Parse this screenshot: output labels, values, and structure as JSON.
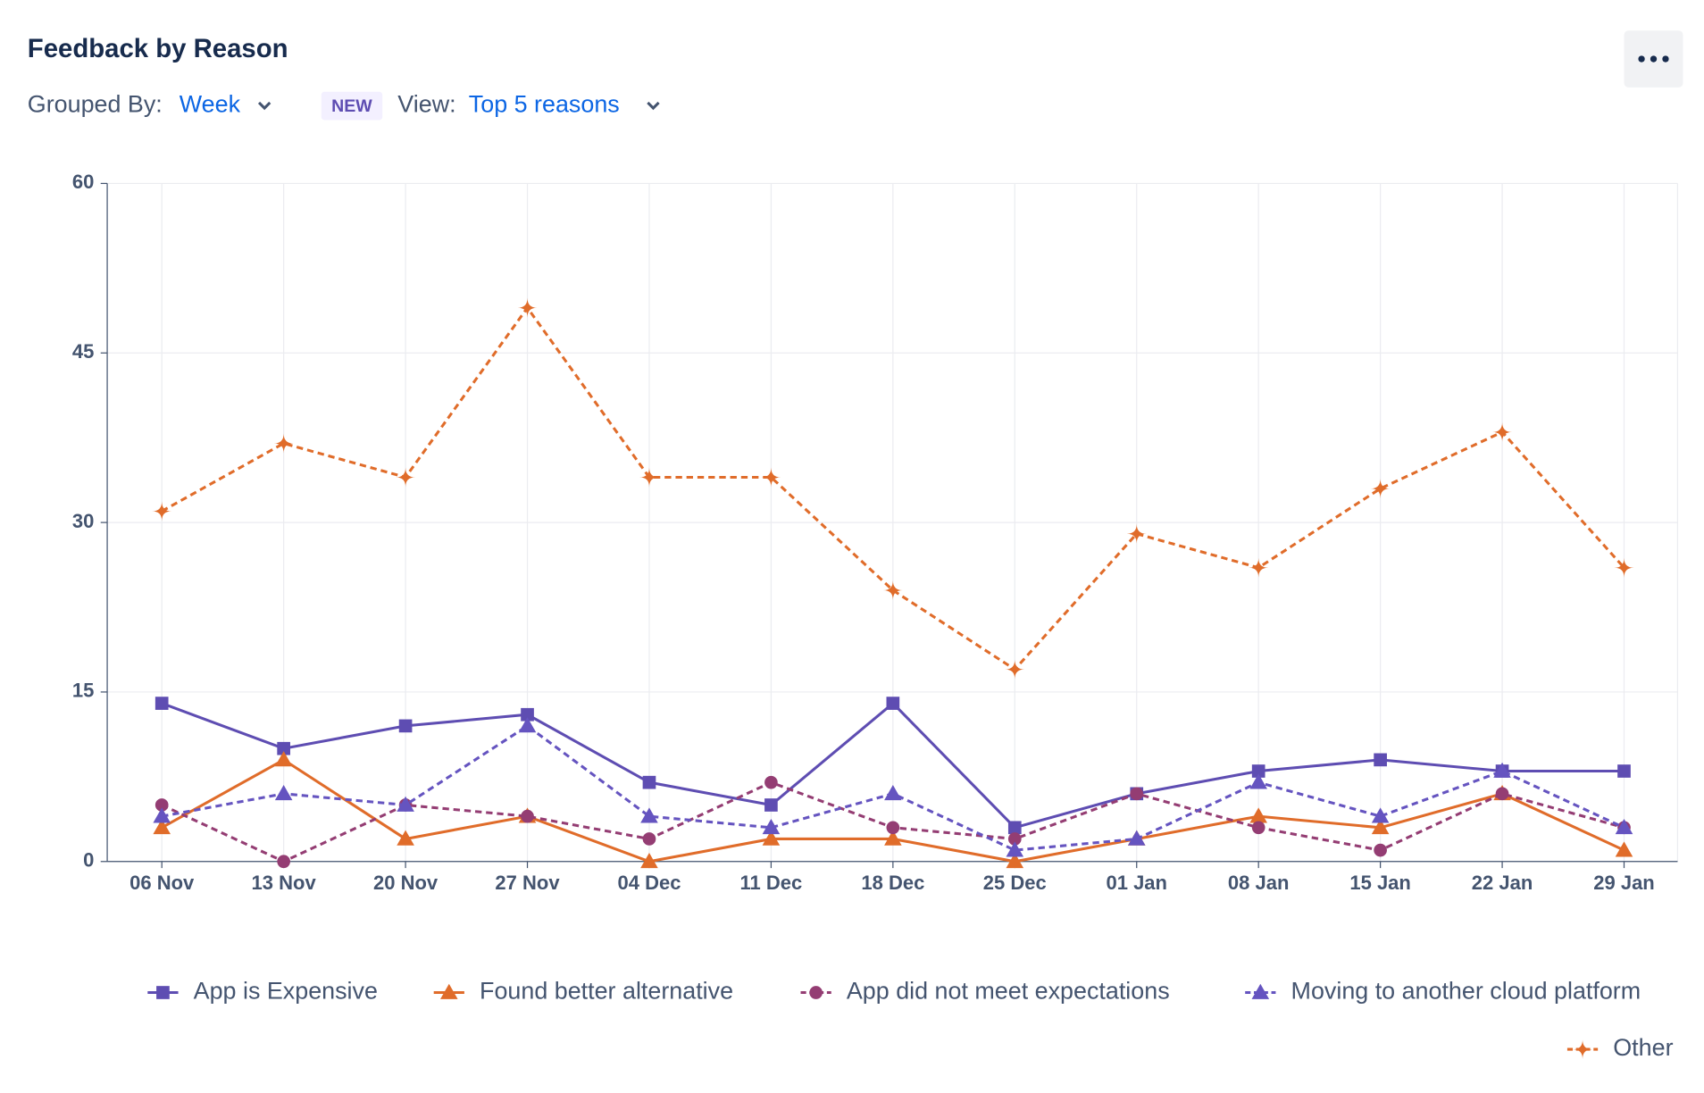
{
  "header": {
    "title": "Feedback by Reason",
    "grouped_by_label": "Grouped By:",
    "grouped_by_value": "Week",
    "badge": "NEW",
    "view_label": "View:",
    "view_value": "Top 5 reasons"
  },
  "chart_data": {
    "type": "line",
    "categories": [
      "06 Nov",
      "13 Nov",
      "20 Nov",
      "27 Nov",
      "04 Dec",
      "11 Dec",
      "18 Dec",
      "25 Dec",
      "01 Jan",
      "08 Jan",
      "15 Jan",
      "22 Jan",
      "29 Jan"
    ],
    "ylim": [
      0,
      60
    ],
    "yticks": [
      0,
      15,
      30,
      45,
      60
    ],
    "grid": true,
    "legend": "bottom",
    "series": [
      {
        "name": "App is Expensive",
        "color": "#5e4db2",
        "marker": "square",
        "dashed": false,
        "values": [
          14,
          10,
          12,
          13,
          7,
          5,
          14,
          3,
          6,
          8,
          9,
          8,
          8
        ]
      },
      {
        "name": "Found better alternative",
        "color": "#e06c2a",
        "marker": "triangle",
        "dashed": false,
        "values": [
          3,
          9,
          2,
          4,
          0,
          2,
          2,
          0,
          2,
          4,
          3,
          6,
          1
        ]
      },
      {
        "name": "App did not meet expectations",
        "color": "#943d73",
        "marker": "circle",
        "dashed": true,
        "values": [
          5,
          0,
          5,
          4,
          2,
          7,
          3,
          2,
          6,
          3,
          1,
          6,
          3
        ]
      },
      {
        "name": "Moving to another cloud platform",
        "color": "#6554c0",
        "marker": "triangle",
        "dashed": true,
        "values": [
          4,
          6,
          5,
          12,
          4,
          3,
          6,
          1,
          2,
          7,
          4,
          8,
          3
        ]
      },
      {
        "name": "Other",
        "color": "#e06c2a",
        "marker": "star",
        "dashed": true,
        "values": [
          31,
          37,
          34,
          49,
          34,
          34,
          24,
          17,
          29,
          26,
          33,
          38,
          26
        ]
      }
    ]
  }
}
